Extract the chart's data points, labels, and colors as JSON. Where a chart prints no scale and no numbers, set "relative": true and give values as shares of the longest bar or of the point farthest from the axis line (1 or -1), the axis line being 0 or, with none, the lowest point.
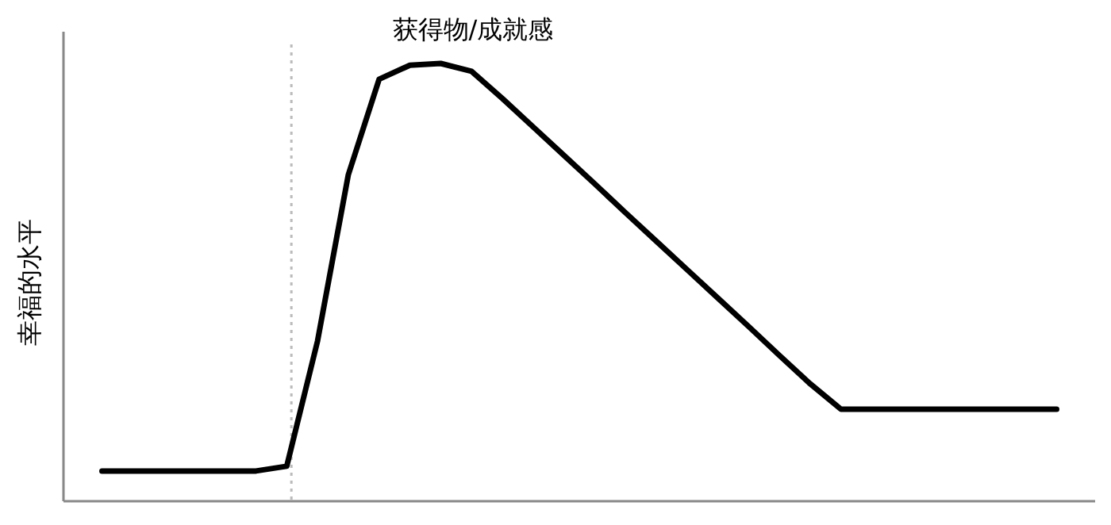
{
  "chart_data": {
    "type": "line",
    "relative": true,
    "ylabel": "幸福的水平",
    "annotations": [
      "获得物/成就感"
    ],
    "categories": [
      null,
      null,
      null,
      null,
      null,
      null,
      null,
      null,
      null,
      null,
      null,
      null,
      null,
      null,
      null,
      null,
      null,
      null,
      null,
      null,
      null,
      null,
      null,
      null,
      null,
      null,
      null,
      null,
      null,
      null,
      null,
      null
    ],
    "series": [
      {
        "color": "#000000",
        "values": [
          0.069,
          0.069,
          0.069,
          0.069,
          0.069,
          0.069,
          0.08,
          0.366,
          0.746,
          0.964,
          0.996,
          1,
          0.982,
          0.92,
          0.855,
          0.79,
          0.725,
          0.659,
          0.594,
          0.529,
          0.464,
          0.399,
          0.333,
          0.268,
          0.21,
          0.21,
          0.21,
          0.21,
          0.21,
          0.21,
          0.21,
          0.21
        ]
      }
    ]
  }
}
